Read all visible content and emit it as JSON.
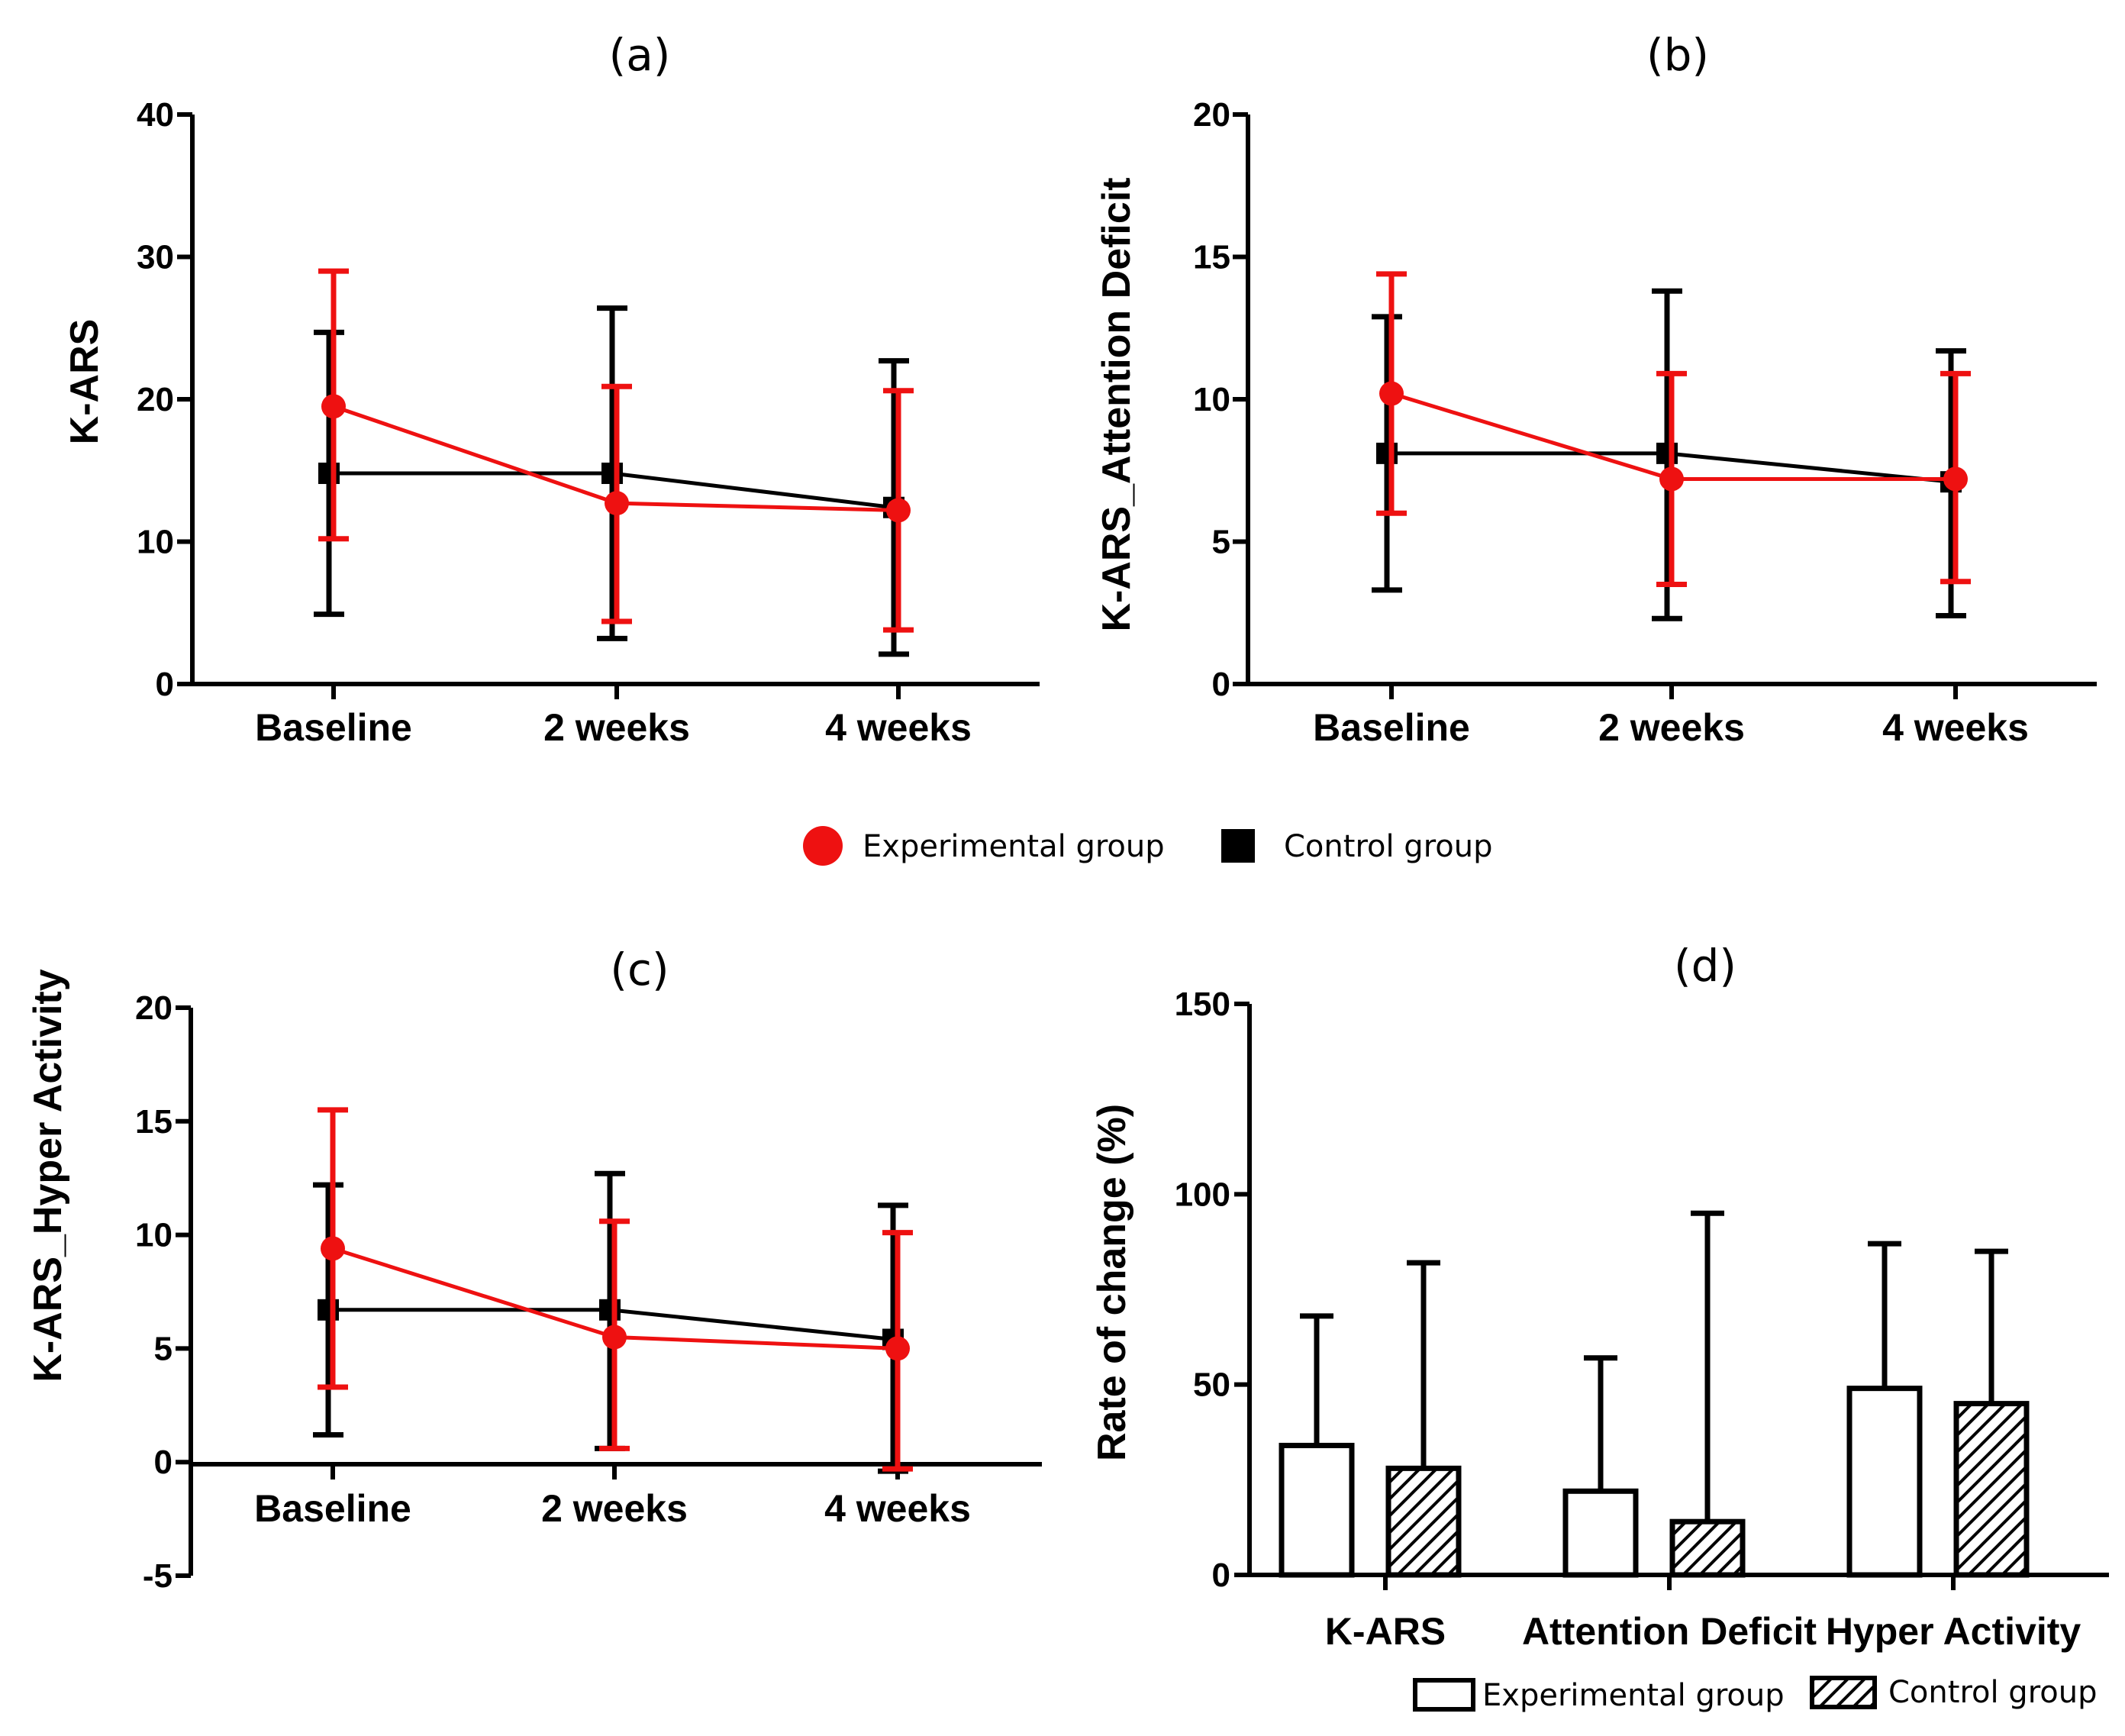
{
  "legend_top": {
    "experimental": "Experimental group",
    "control": "Control group"
  },
  "legend_bottom": {
    "experimental": "Experimental group",
    "control": "Control group"
  },
  "colors": {
    "experimental": "#ee1111",
    "control": "#000000"
  },
  "chart_data": [
    {
      "panel": "a",
      "type": "line",
      "title": "(a)",
      "ylabel": "K-ARS",
      "xlabel": "",
      "categories": [
        "Baseline",
        "2 weeks",
        "4 weeks"
      ],
      "ylim": [
        0,
        40
      ],
      "yticks": [
        0,
        10,
        20,
        30,
        40
      ],
      "series": [
        {
          "name": "Experimental group",
          "values": [
            19.5,
            12.7,
            12.2
          ],
          "err_low": [
            10.2,
            4.4,
            3.8
          ],
          "err_high": [
            29.0,
            20.9,
            20.6
          ]
        },
        {
          "name": "Control group",
          "values": [
            14.8,
            14.8,
            12.4
          ],
          "err_low": [
            4.9,
            3.2,
            2.1
          ],
          "err_high": [
            24.7,
            26.4,
            22.7
          ]
        }
      ]
    },
    {
      "panel": "b",
      "type": "line",
      "title": "(b)",
      "ylabel": "K-ARS_Attention Deficit",
      "xlabel": "",
      "categories": [
        "Baseline",
        "2 weeks",
        "4 weeks"
      ],
      "ylim": [
        0,
        20
      ],
      "yticks": [
        0,
        5,
        10,
        15,
        20
      ],
      "series": [
        {
          "name": "Experimental group",
          "values": [
            10.2,
            7.2,
            7.2
          ],
          "err_low": [
            6.0,
            3.5,
            3.6
          ],
          "err_high": [
            14.4,
            10.9,
            10.9
          ]
        },
        {
          "name": "Control group",
          "values": [
            8.1,
            8.1,
            7.1
          ],
          "err_low": [
            3.3,
            2.3,
            2.4
          ],
          "err_high": [
            12.9,
            13.8,
            11.7
          ]
        }
      ]
    },
    {
      "panel": "c",
      "type": "line",
      "title": "(c)",
      "ylabel": "K-ARS_Hyper Activity",
      "xlabel": "",
      "categories": [
        "Baseline",
        "2 weeks",
        "4 weeks"
      ],
      "ylim": [
        -5,
        20
      ],
      "yticks": [
        -5,
        0,
        5,
        10,
        15,
        20
      ],
      "series": [
        {
          "name": "Experimental group",
          "values": [
            9.4,
            5.5,
            5.0
          ],
          "err_low": [
            3.3,
            0.6,
            -0.3
          ],
          "err_high": [
            15.5,
            10.6,
            10.1
          ]
        },
        {
          "name": "Control group",
          "values": [
            6.7,
            6.7,
            5.4
          ],
          "err_low": [
            1.2,
            0.6,
            -0.4
          ],
          "err_high": [
            12.2,
            12.7,
            11.3
          ]
        }
      ]
    },
    {
      "panel": "d",
      "type": "bar",
      "title": "(d)",
      "ylabel": "Rate of change (%)",
      "xlabel": "",
      "categories": [
        "K-ARS",
        "Attention Deficit",
        "Hyper Activity"
      ],
      "ylim": [
        0,
        150
      ],
      "yticks": [
        0,
        50,
        100,
        150
      ],
      "series": [
        {
          "name": "Experimental group",
          "values": [
            34,
            22,
            49
          ],
          "err_high": [
            68,
            57,
            87
          ]
        },
        {
          "name": "Control group",
          "values": [
            28,
            14,
            45
          ],
          "err_high": [
            82,
            95,
            85
          ]
        }
      ]
    }
  ]
}
